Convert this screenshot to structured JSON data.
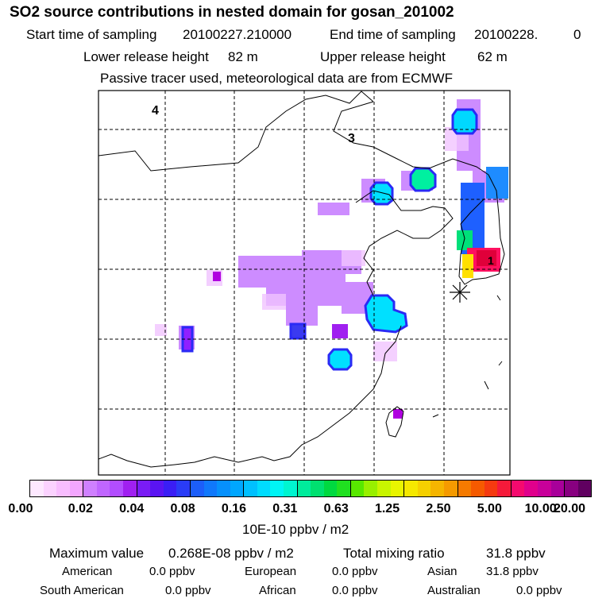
{
  "header": {
    "title": "SO2 source contributions in nested domain for gosan_201002",
    "start_label": "Start time of sampling",
    "start_value": "20100227.210000",
    "end_label": "End time of sampling",
    "end_value": "20100228.",
    "end_suffix": "0",
    "lower_label": "Lower release height",
    "lower_value": "82 m",
    "upper_label": "Upper release height",
    "upper_value": "62 m",
    "note": "Passive tracer used, meteorological data are from ECMWF"
  },
  "map": {
    "region_labels": [
      "4",
      "3"
    ],
    "station_marker": "asterisk",
    "colors": {
      "border": "#000000",
      "grid": "#000000"
    }
  },
  "colorbar": {
    "ticks": [
      "0.00",
      "0.02",
      "0.04",
      "0.08",
      "0.16",
      "0.31",
      "0.63",
      "1.25",
      "2.50",
      "5.00",
      "10.00",
      "20.00"
    ],
    "units": "10E-10 ppbv / m2",
    "colors": [
      "#fde8ff",
      "#fbd2ff",
      "#f8bdff",
      "#f3a6ff",
      "#cf80ff",
      "#c066ff",
      "#b24dff",
      "#a020f0",
      "#7a1cf5",
      "#5a14f2",
      "#3a1ef5",
      "#2a3cf7",
      "#1c5ef9",
      "#1078fb",
      "#0690fc",
      "#00a6fe",
      "#00c0ff",
      "#00dcff",
      "#00f5f5",
      "#00f5d0",
      "#00ec9c",
      "#00e070",
      "#00d940",
      "#20e020",
      "#58e800",
      "#98f000",
      "#c8f500",
      "#e8f500",
      "#f5e800",
      "#f5d000",
      "#f5b500",
      "#f59a00",
      "#f57a00",
      "#f55a00",
      "#f53a10",
      "#f51a3a",
      "#f50a6e",
      "#e0008c",
      "#c8009a",
      "#a8009a",
      "#880080",
      "#600060"
    ]
  },
  "stats": {
    "max_label": "Maximum value",
    "max_value": "0.268E-08 ppbv / m2",
    "total_label": "Total mixing ratio",
    "total_value": "31.8 ppbv",
    "regions": [
      {
        "name": "American",
        "value": "0.0 ppbv"
      },
      {
        "name": "European",
        "value": "0.0 ppbv"
      },
      {
        "name": "Asian",
        "value": "31.8 ppbv"
      },
      {
        "name": "South American",
        "value": "0.0 ppbv"
      },
      {
        "name": "African",
        "value": "0.0 ppbv"
      },
      {
        "name": "Australian",
        "value": "0.0 ppbv"
      }
    ]
  }
}
